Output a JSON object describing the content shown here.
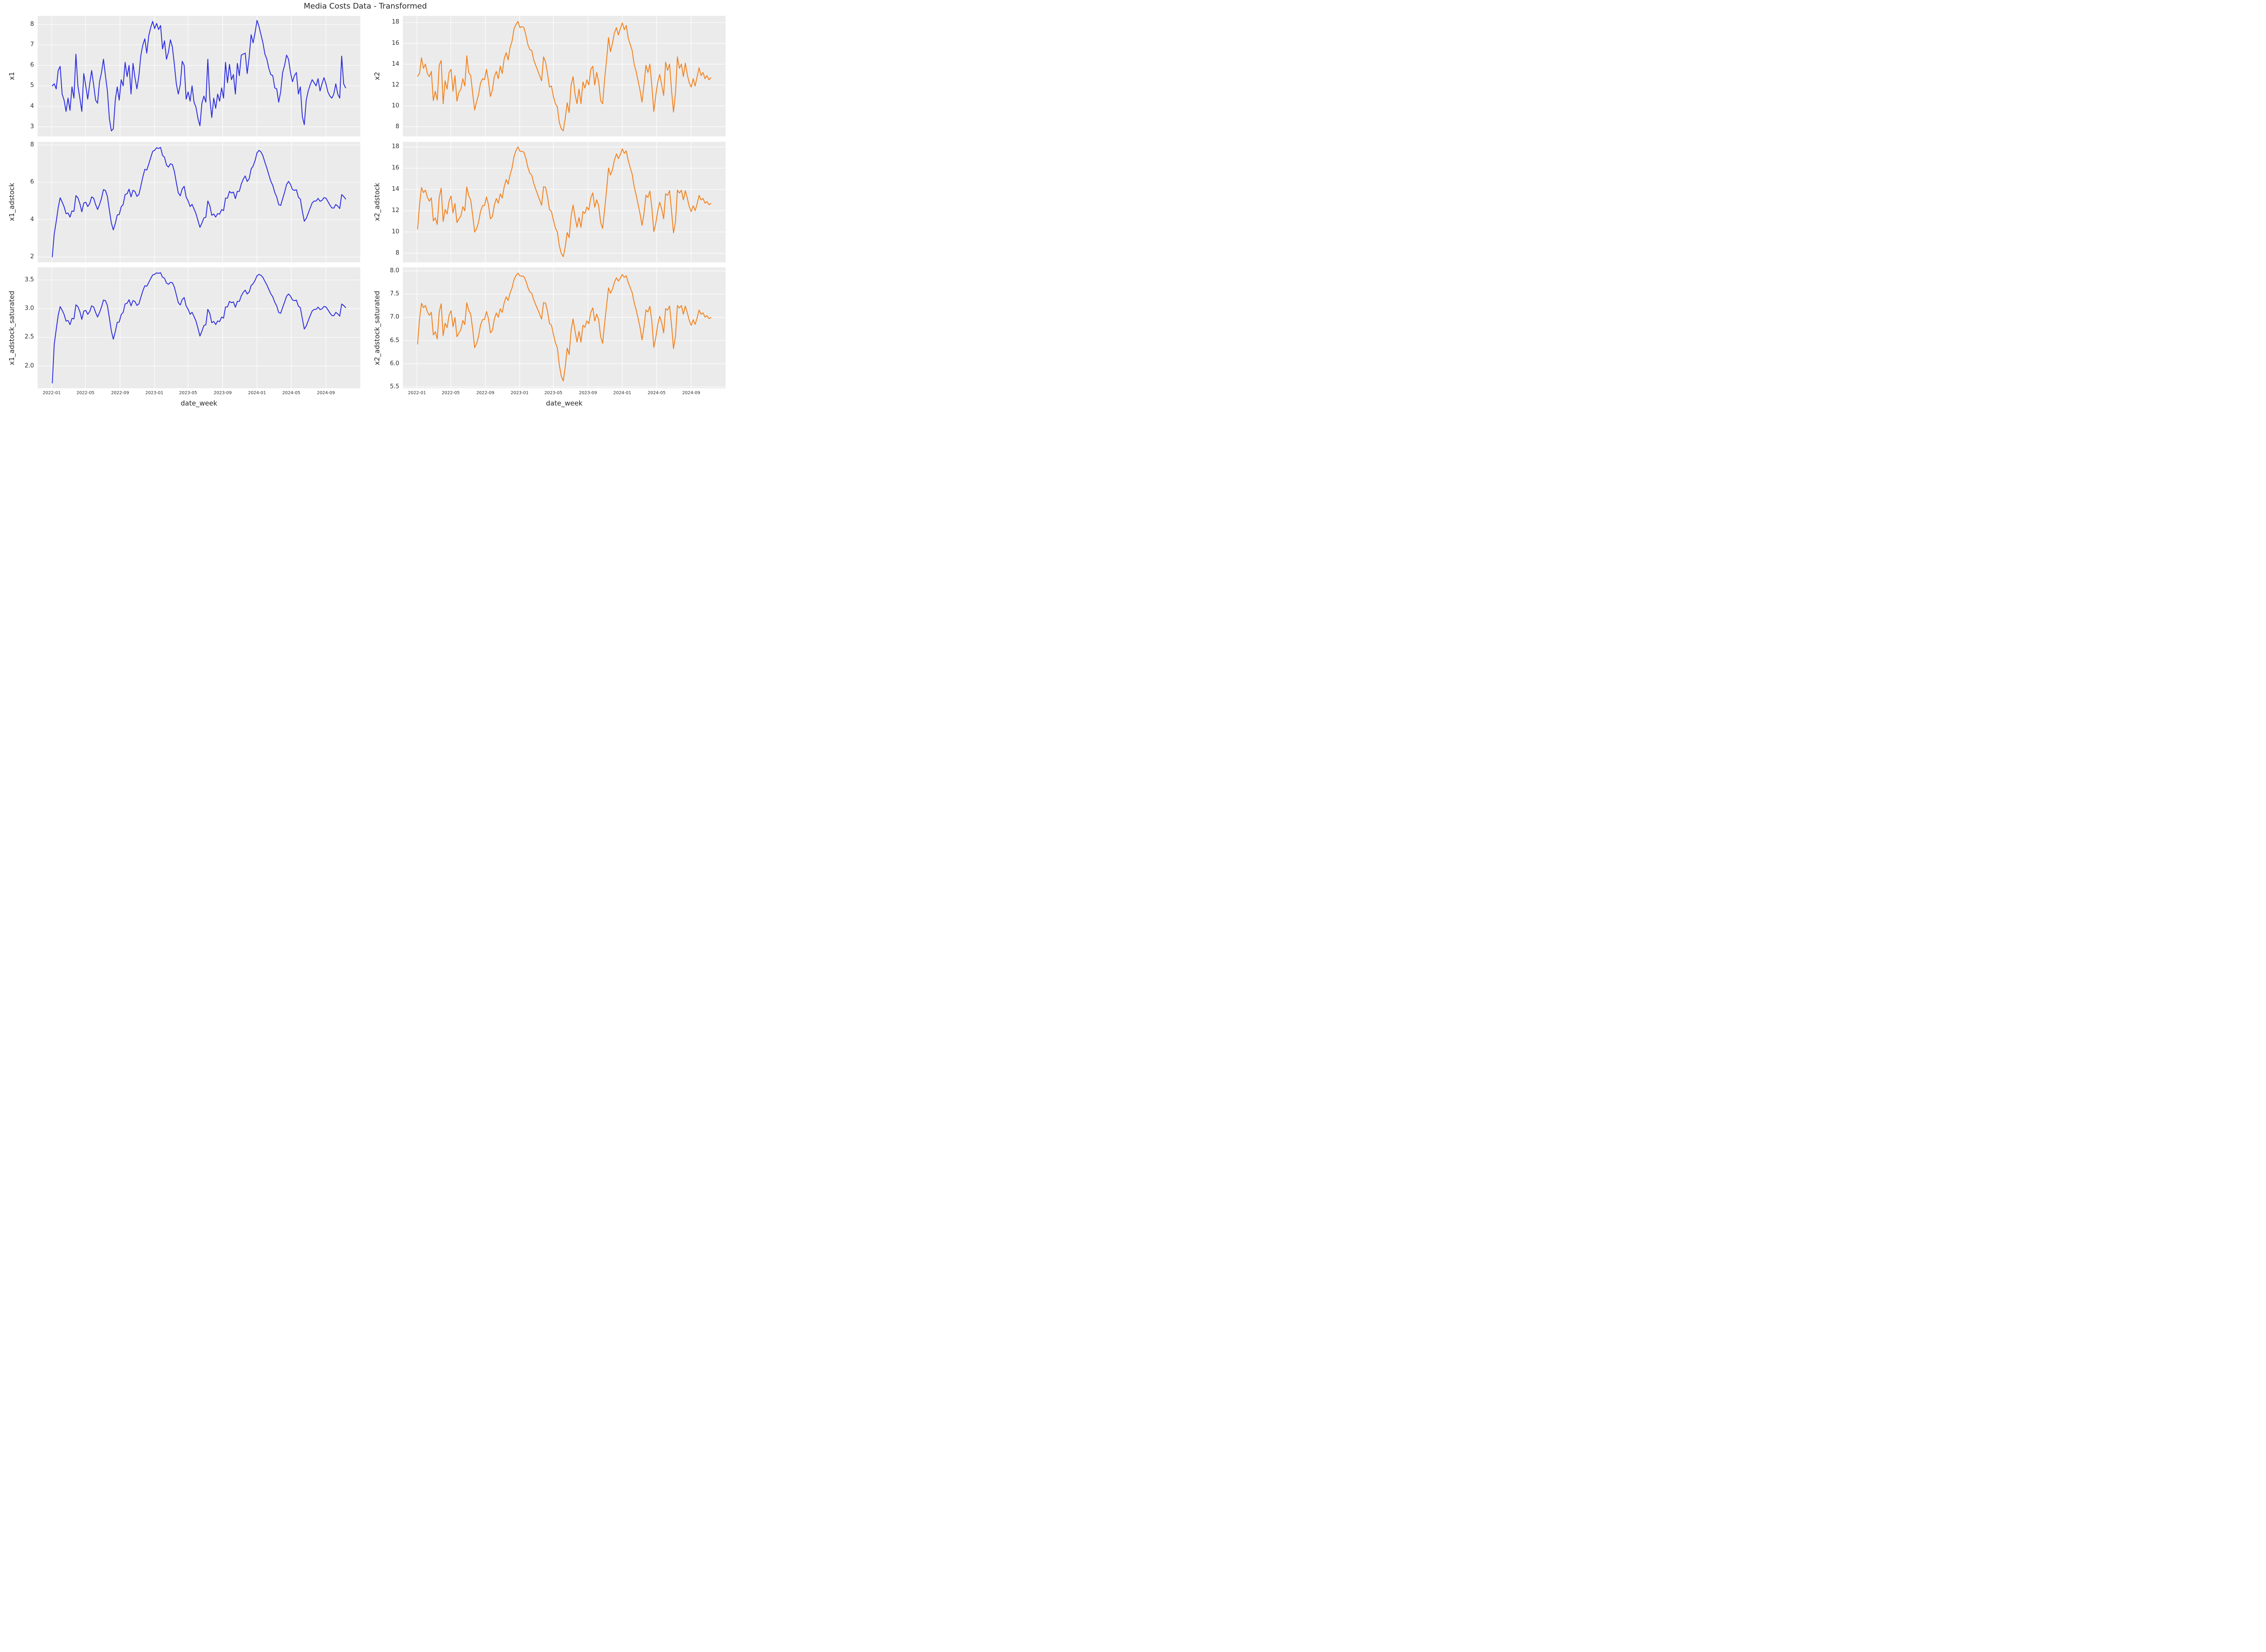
{
  "chart_data": {
    "type": "line",
    "title": "Media Costs Data - Transformed",
    "xlabel": "date_week",
    "x_start": "2022-01-03",
    "freq_days": 7,
    "n_points": 150,
    "x_axis_range_weeks": [
      -7.45,
      156.45
    ],
    "grid": true,
    "legend": "none",
    "x_ticks": [
      {
        "label": "2022-01",
        "week": -0.29
      },
      {
        "label": "2022-05",
        "week": 16.86
      },
      {
        "label": "2022-09",
        "week": 34.43
      },
      {
        "label": "2023-01",
        "week": 51.86
      },
      {
        "label": "2023-05",
        "week": 69.0
      },
      {
        "label": "2023-09",
        "week": 86.57
      },
      {
        "label": "2024-01",
        "week": 104.0
      },
      {
        "label": "2024-05",
        "week": 121.43
      },
      {
        "label": "2024-09",
        "week": 139.0
      }
    ],
    "series": {
      "x1": [
        5.0,
        5.1,
        4.85,
        5.75,
        5.95,
        4.6,
        4.3,
        3.75,
        4.4,
        3.8,
        4.95,
        4.4,
        6.55,
        5.0,
        4.4,
        3.75,
        5.6,
        5.0,
        4.35,
        5.1,
        5.75,
        5.05,
        4.3,
        4.15,
        5.2,
        5.65,
        6.3,
        5.5,
        4.75,
        3.4,
        2.8,
        2.9,
        4.3,
        4.95,
        4.3,
        5.3,
        5.0,
        6.15,
        5.45,
        6.0,
        4.6,
        6.1,
        5.4,
        4.85,
        5.5,
        6.5,
        7.0,
        7.3,
        6.6,
        7.45,
        7.85,
        8.15,
        7.8,
        8.05,
        7.75,
        7.95,
        6.8,
        7.2,
        6.3,
        6.65,
        7.25,
        6.9,
        6.05,
        5.1,
        4.6,
        5.05,
        6.2,
        6.0,
        4.35,
        4.7,
        4.25,
        5.0,
        4.2,
        3.95,
        3.4,
        3.05,
        4.15,
        4.5,
        4.2,
        6.3,
        4.4,
        3.45,
        4.4,
        3.9,
        4.6,
        4.25,
        4.9,
        4.4,
        6.15,
        5.15,
        6.05,
        5.3,
        5.55,
        4.6,
        6.1,
        5.5,
        6.5,
        6.55,
        6.6,
        5.6,
        6.4,
        7.5,
        7.1,
        7.6,
        8.2,
        7.9,
        7.5,
        7.1,
        6.55,
        6.3,
        5.85,
        5.55,
        5.5,
        4.9,
        4.85,
        4.2,
        4.7,
        5.65,
        6.0,
        6.5,
        6.3,
        5.65,
        5.2,
        5.5,
        5.65,
        4.6,
        4.95,
        3.5,
        3.1,
        4.3,
        4.75,
        5.05,
        5.3,
        5.15,
        5.0,
        5.35,
        4.75,
        5.1,
        5.4,
        5.1,
        4.7,
        4.5,
        4.4,
        4.6,
        5.1,
        4.6,
        4.4,
        6.45,
        5.1,
        4.9
      ],
      "x2": [
        12.85,
        13.1,
        14.6,
        13.6,
        14.0,
        13.1,
        12.8,
        13.3,
        10.5,
        11.4,
        10.55,
        13.9,
        14.35,
        10.2,
        12.4,
        11.6,
        13.2,
        13.5,
        11.4,
        12.9,
        10.45,
        11.3,
        11.6,
        12.6,
        11.9,
        14.8,
        13.2,
        12.9,
        11.2,
        9.6,
        10.4,
        11.1,
        12.2,
        12.6,
        12.5,
        13.5,
        12.4,
        10.9,
        11.5,
        12.8,
        13.3,
        12.6,
        13.8,
        13.1,
        14.5,
        15.1,
        14.4,
        15.6,
        16.2,
        17.4,
        17.8,
        18.1,
        17.5,
        17.6,
        17.5,
        16.8,
        15.9,
        15.4,
        15.3,
        14.4,
        13.9,
        13.4,
        12.9,
        12.4,
        14.7,
        14.2,
        13.1,
        11.8,
        11.9,
        10.9,
        10.2,
        9.9,
        8.4,
        7.8,
        7.6,
        8.8,
        10.3,
        9.35,
        12.0,
        12.8,
        11.1,
        10.2,
        11.6,
        10.2,
        12.3,
        11.7,
        12.5,
        12.0,
        13.5,
        13.8,
        12.0,
        13.2,
        12.3,
        10.5,
        10.2,
        12.5,
        14.4,
        16.55,
        15.2,
        16.0,
        17.0,
        17.5,
        16.8,
        17.4,
        17.95,
        17.3,
        17.7,
        16.5,
        15.9,
        15.3,
        14.0,
        13.3,
        12.4,
        11.5,
        10.35,
        12.0,
        13.9,
        13.2,
        14.0,
        11.9,
        9.45,
        11.0,
        12.3,
        13.0,
        12.0,
        11.0,
        14.2,
        13.4,
        14.0,
        11.5,
        9.4,
        11.2,
        14.7,
        13.6,
        14.0,
        12.8,
        14.1,
        13.0,
        12.2,
        11.8,
        12.6,
        11.9,
        12.8,
        13.65,
        12.9,
        13.2,
        12.6,
        12.9,
        12.5,
        12.7
      ]
    },
    "transforms": {
      "x1_adstock": {
        "type": "geometric_adstock",
        "source": "x1",
        "alpha": 0.6,
        "l_max": 12,
        "normalized": true
      },
      "x2_adstock": {
        "type": "geometric_adstock",
        "source": "x2",
        "alpha": 0.2,
        "l_max": 12,
        "normalized": true
      },
      "x1_adstock_saturated": {
        "type": "log_saturation",
        "source": "x1_adstock",
        "scale": 1.406,
        "offset": 0.725
      },
      "x2_adstock_saturated": {
        "type": "log_saturation",
        "source": "x2_adstock",
        "scale": 2.73,
        "offset": 0.063
      }
    },
    "subplots": [
      {
        "id": "x1",
        "ylabel": "x1",
        "data": "x1",
        "color": "blue",
        "ylim": [
          2.53,
          8.42
        ],
        "ytick_vals": [
          3,
          4,
          5,
          6,
          7,
          8
        ],
        "ytick_labels": [
          "3",
          "4",
          "5",
          "6",
          "7",
          "8"
        ],
        "show_xticklabels": false
      },
      {
        "id": "x2",
        "ylabel": "x2",
        "data": "x2",
        "color": "orange",
        "ylim": [
          7.07,
          18.63
        ],
        "ytick_vals": [
          8,
          10,
          12,
          14,
          16,
          18
        ],
        "ytick_labels": [
          "8",
          "10",
          "12",
          "14",
          "16",
          "18"
        ],
        "show_xticklabels": false
      },
      {
        "id": "x1_adstock",
        "ylabel": "x1_adstock",
        "data": "x1_adstock",
        "color": "blue",
        "ylim": [
          1.71,
          8.17
        ],
        "ytick_vals": [
          2,
          4,
          6,
          8
        ],
        "ytick_labels": [
          "2",
          "4",
          "6",
          "8"
        ],
        "show_xticklabels": false
      },
      {
        "id": "x2_adstock",
        "ylabel": "x2_adstock",
        "data": "x2_adstock",
        "color": "orange",
        "ylim": [
          7.14,
          18.49
        ],
        "ytick_vals": [
          8,
          10,
          12,
          14,
          16,
          18
        ],
        "ytick_labels": [
          "8",
          "10",
          "12",
          "14",
          "16",
          "18"
        ],
        "show_xticklabels": false
      },
      {
        "id": "x1_adstock_saturated",
        "ylabel": "x1_adstock_saturated",
        "data": "x1_adstock_saturated",
        "color": "blue",
        "ylim": [
          1.61,
          3.72
        ],
        "ytick_vals": [
          2.0,
          2.5,
          3.0,
          3.5
        ],
        "ytick_labels": [
          "2.0",
          "2.5",
          "3.0",
          "3.5"
        ],
        "show_xticklabels": true
      },
      {
        "id": "x2_adstock_saturated",
        "ylabel": "x2_adstock_saturated",
        "data": "x2_adstock_saturated",
        "color": "orange",
        "ylim": [
          5.47,
          8.08
        ],
        "ytick_vals": [
          5.5,
          6.0,
          6.5,
          7.0,
          7.5,
          8.0
        ],
        "ytick_labels": [
          "5.5",
          "6.0",
          "6.5",
          "7.0",
          "7.5",
          "8.0"
        ],
        "show_xticklabels": true
      }
    ],
    "style": {
      "blue": "#2b2be1",
      "orange": "#f2801a",
      "plot_bg": "#ebebeb",
      "grid_color": "#ffffff",
      "text_color": "#262626",
      "tick_color": "#303030",
      "figure_bg": "#ffffff"
    }
  }
}
